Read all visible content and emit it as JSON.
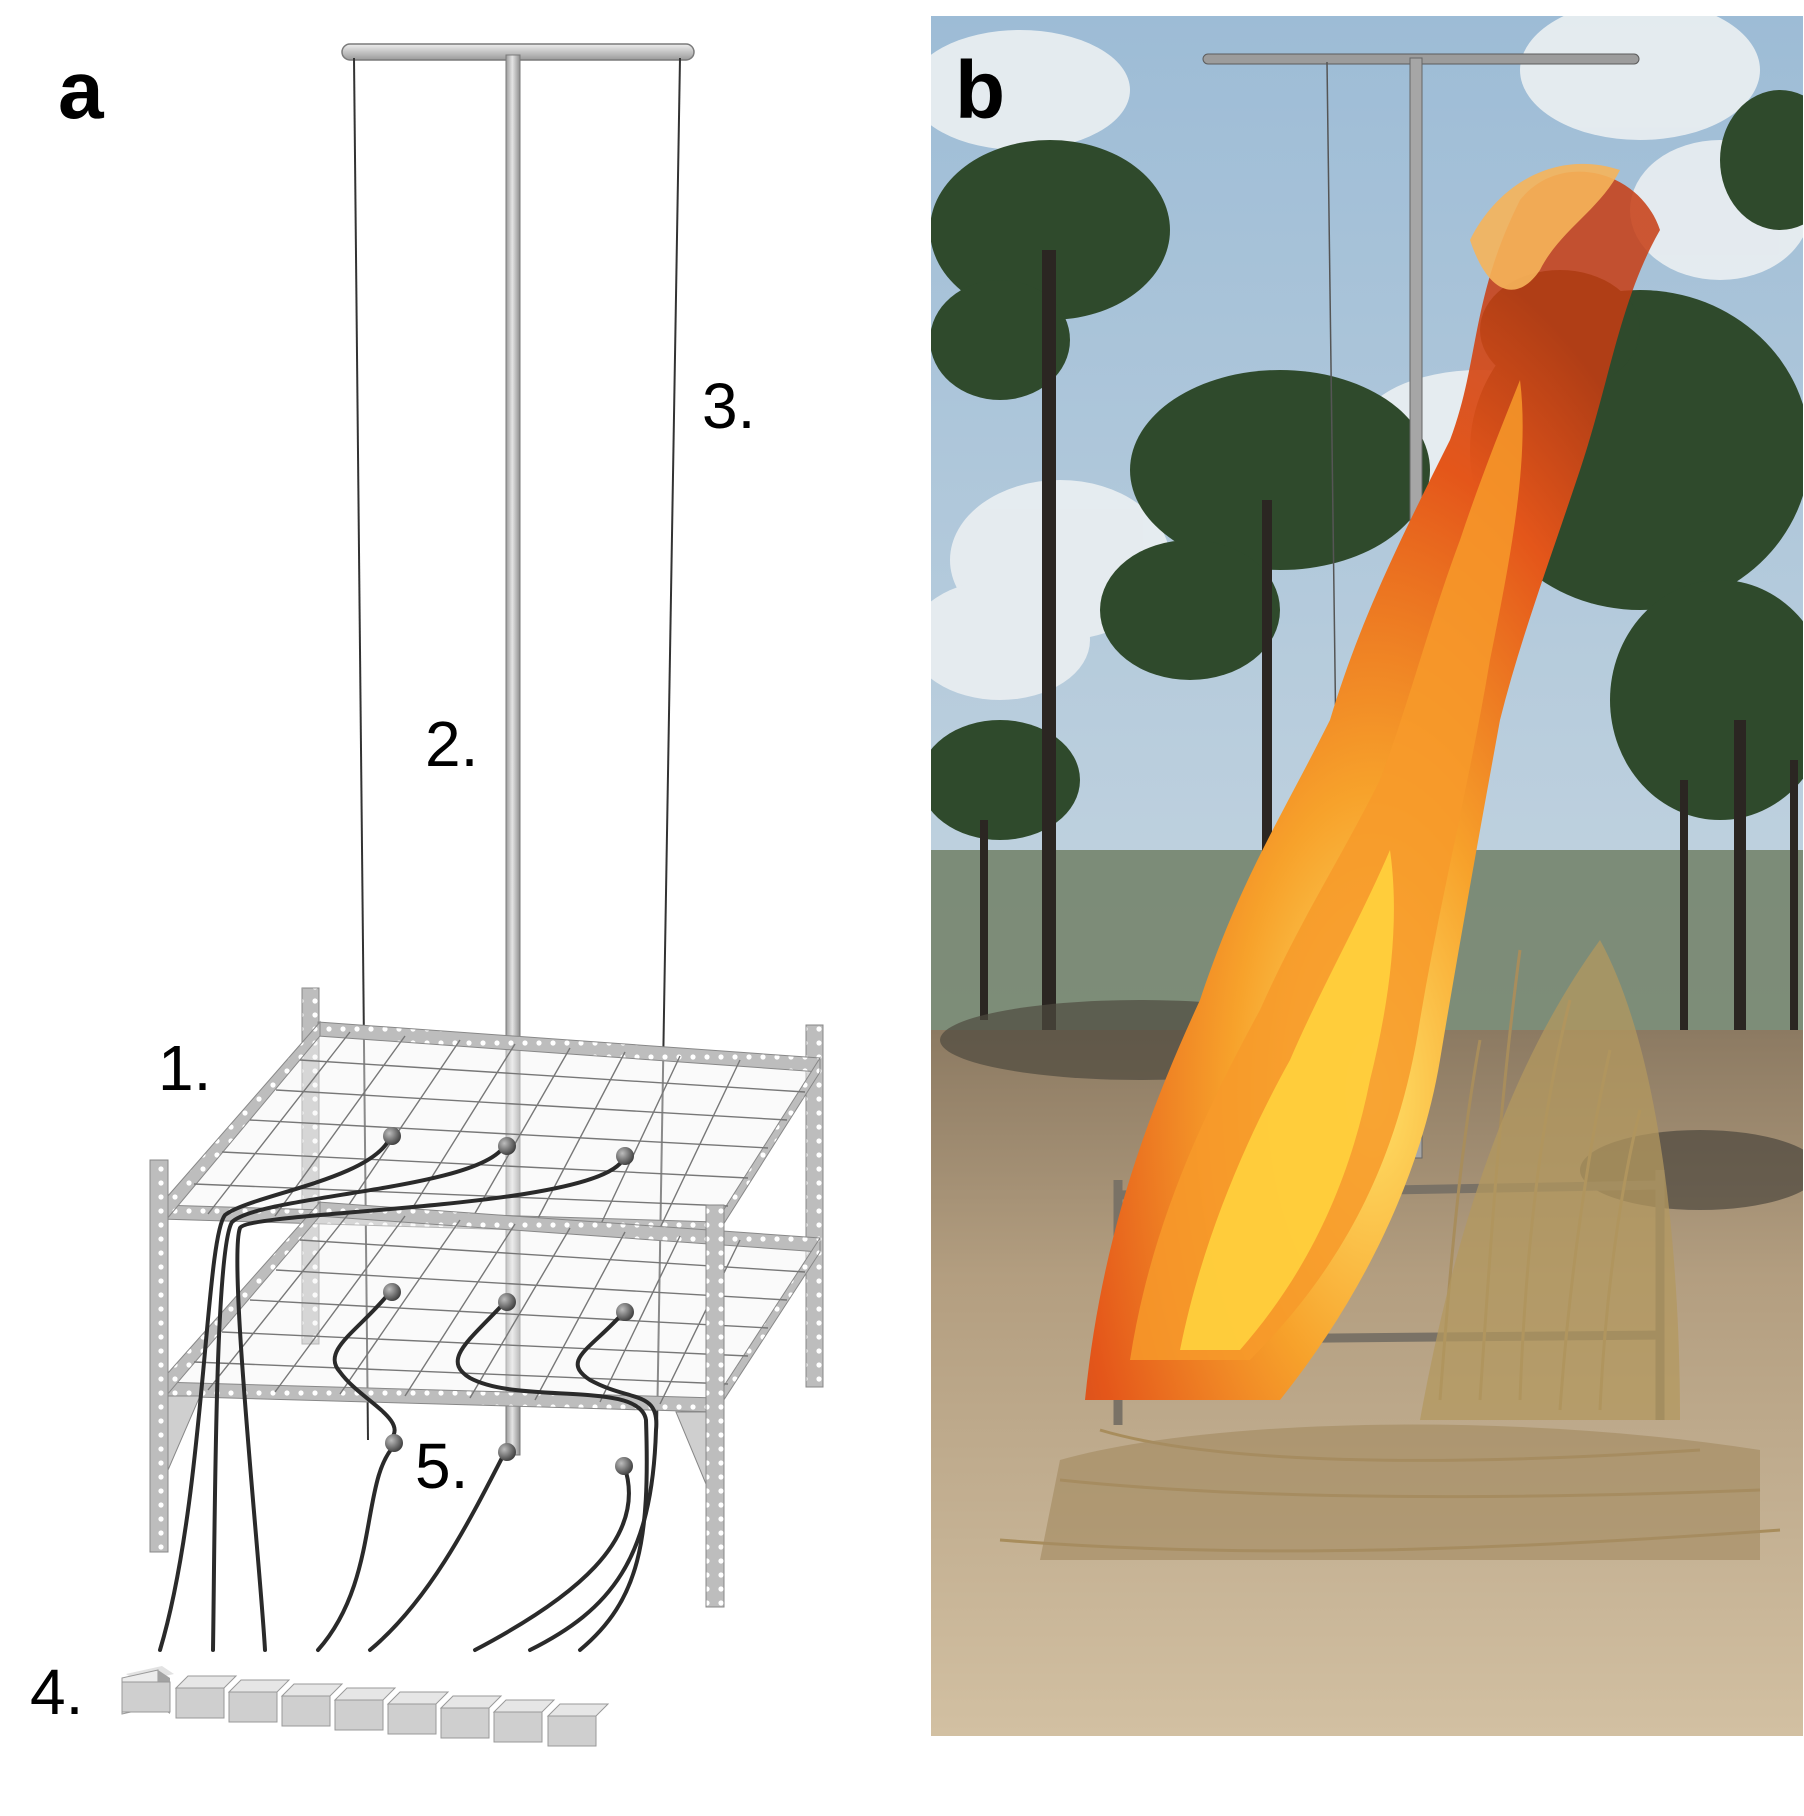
{
  "panels": {
    "a": {
      "letter": "a",
      "labels": {
        "l1": "1.",
        "l2": "2.",
        "l3": "3.",
        "l4": "4.",
        "l5": "5."
      }
    },
    "b": {
      "letter": "b"
    }
  },
  "colors": {
    "metal": "#c8c8c8",
    "metal_dark": "#8f8f8f",
    "wire": "#2a2a2a",
    "sensor": "#6d6d6d",
    "box_top": "#d9d9d9",
    "box_side": "#9e9e9e",
    "sky": "#a9c6dd",
    "cloud": "#e9eef2",
    "pine": "#2f4a2c",
    "trunk": "#2b2622",
    "ground": "#c2ad8d",
    "grass": "#b0935f",
    "flame_outer": "#e2551a",
    "flame_mid": "#f38c22",
    "flame_core": "#ffd23d"
  }
}
